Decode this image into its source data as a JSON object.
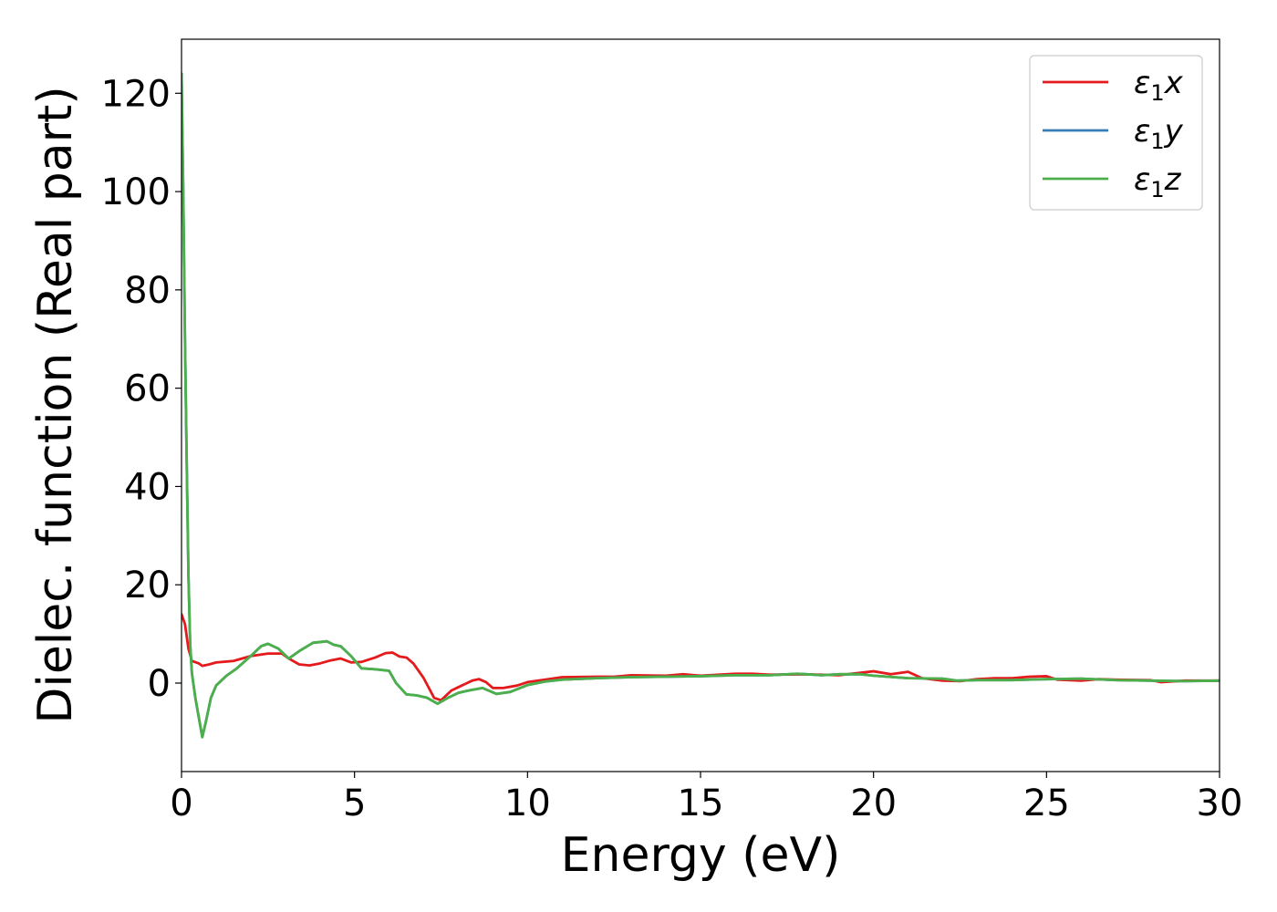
{
  "chart_data": {
    "type": "line",
    "title": "",
    "xlabel": "Energy (eV)",
    "ylabel": "Dielec. function (Real part)",
    "xlim": [
      0,
      30
    ],
    "ylim": [
      -18,
      131
    ],
    "xticks": [
      0,
      5,
      10,
      15,
      20,
      25,
      30
    ],
    "yticks": [
      0,
      20,
      40,
      60,
      80,
      100,
      120
    ],
    "grid": false,
    "legend_position": "top-right",
    "series": [
      {
        "name": "ε1x",
        "label_main": "ε",
        "label_sub": "1",
        "label_suffix": "x",
        "color": "#e41a1c",
        "points": [
          [
            0,
            14
          ],
          [
            0.1,
            12
          ],
          [
            0.2,
            7
          ],
          [
            0.3,
            4.5
          ],
          [
            0.5,
            4
          ],
          [
            0.6,
            3.5
          ],
          [
            0.8,
            3.8
          ],
          [
            1,
            4.2
          ],
          [
            1.5,
            4.5
          ],
          [
            2,
            5.5
          ],
          [
            2.5,
            6
          ],
          [
            2.9,
            6
          ],
          [
            3.1,
            5
          ],
          [
            3.4,
            3.8
          ],
          [
            3.7,
            3.6
          ],
          [
            4,
            4
          ],
          [
            4.3,
            4.6
          ],
          [
            4.6,
            5
          ],
          [
            4.9,
            4.2
          ],
          [
            5.2,
            4.3
          ],
          [
            5.6,
            5.2
          ],
          [
            5.9,
            6.1
          ],
          [
            6.1,
            6.2
          ],
          [
            6.3,
            5.4
          ],
          [
            6.5,
            5.2
          ],
          [
            6.7,
            4
          ],
          [
            7,
            1
          ],
          [
            7.3,
            -3
          ],
          [
            7.5,
            -3.5
          ],
          [
            7.8,
            -1.5
          ],
          [
            8.1,
            -0.5
          ],
          [
            8.4,
            0.5
          ],
          [
            8.6,
            0.8
          ],
          [
            8.8,
            0.2
          ],
          [
            9,
            -1
          ],
          [
            9.3,
            -1
          ],
          [
            9.7,
            -0.5
          ],
          [
            10,
            0.2
          ],
          [
            10.5,
            0.7
          ],
          [
            11,
            1.2
          ],
          [
            12,
            1.3
          ],
          [
            12.5,
            1.3
          ],
          [
            13,
            1.6
          ],
          [
            14,
            1.5
          ],
          [
            14.5,
            1.8
          ],
          [
            15,
            1.5
          ],
          [
            16,
            1.9
          ],
          [
            16.5,
            1.9
          ],
          [
            17,
            1.7
          ],
          [
            18,
            1.8
          ],
          [
            19,
            1.6
          ],
          [
            20,
            2.4
          ],
          [
            20.5,
            1.8
          ],
          [
            21,
            2.3
          ],
          [
            21.4,
            1
          ],
          [
            22,
            0.5
          ],
          [
            22.5,
            0.4
          ],
          [
            23,
            0.8
          ],
          [
            23.5,
            1
          ],
          [
            24,
            1
          ],
          [
            24.5,
            1.3
          ],
          [
            25,
            1.4
          ],
          [
            25.3,
            0.7
          ],
          [
            26,
            0.5
          ],
          [
            26.5,
            0.8
          ],
          [
            27,
            0.7
          ],
          [
            28,
            0.6
          ],
          [
            28.3,
            0.2
          ],
          [
            29,
            0.5
          ],
          [
            30,
            0.5
          ]
        ]
      },
      {
        "name": "ε1y",
        "label_main": "ε",
        "label_sub": "1",
        "label_suffix": "y",
        "color": "#377eb8",
        "points": [
          [
            0,
            124
          ],
          [
            0.05,
            100
          ],
          [
            0.1,
            70
          ],
          [
            0.15,
            45
          ],
          [
            0.2,
            22
          ],
          [
            0.25,
            8
          ],
          [
            0.3,
            2
          ],
          [
            0.4,
            -3
          ],
          [
            0.5,
            -7
          ],
          [
            0.6,
            -11
          ],
          [
            0.7,
            -8
          ],
          [
            0.85,
            -3
          ],
          [
            1,
            -0.5
          ],
          [
            1.3,
            1.5
          ],
          [
            1.6,
            3
          ],
          [
            2,
            5.5
          ],
          [
            2.3,
            7.5
          ],
          [
            2.5,
            8
          ],
          [
            2.8,
            7
          ],
          [
            3.1,
            5
          ],
          [
            3.4,
            6.5
          ],
          [
            3.8,
            8.2
          ],
          [
            4.2,
            8.5
          ],
          [
            4.4,
            7.8
          ],
          [
            4.6,
            7.5
          ],
          [
            4.9,
            5.5
          ],
          [
            5.2,
            3
          ],
          [
            5.6,
            2.8
          ],
          [
            6,
            2.5
          ],
          [
            6.2,
            0
          ],
          [
            6.5,
            -2.3
          ],
          [
            6.8,
            -2.5
          ],
          [
            7.1,
            -3
          ],
          [
            7.4,
            -4.2
          ],
          [
            7.7,
            -3
          ],
          [
            8,
            -2
          ],
          [
            8.3,
            -1.5
          ],
          [
            8.7,
            -1
          ],
          [
            9.1,
            -2.2
          ],
          [
            9.5,
            -1.8
          ],
          [
            10,
            -0.4
          ],
          [
            10.5,
            0.3
          ],
          [
            11,
            0.7
          ],
          [
            12,
            1
          ],
          [
            13,
            1.2
          ],
          [
            14,
            1.3
          ],
          [
            15,
            1.4
          ],
          [
            16,
            1.6
          ],
          [
            17,
            1.6
          ],
          [
            17.8,
            1.9
          ],
          [
            18.5,
            1.6
          ],
          [
            19,
            1.8
          ],
          [
            19.6,
            1.8
          ],
          [
            20,
            1.5
          ],
          [
            21,
            1
          ],
          [
            22,
            0.9
          ],
          [
            22.4,
            0.5
          ],
          [
            23,
            0.6
          ],
          [
            24,
            0.6
          ],
          [
            25,
            0.8
          ],
          [
            26,
            0.9
          ],
          [
            27,
            0.6
          ],
          [
            28,
            0.5
          ],
          [
            29,
            0.4
          ],
          [
            30,
            0.5
          ]
        ]
      },
      {
        "name": "ε1z",
        "label_main": "ε",
        "label_sub": "1",
        "label_suffix": "z",
        "color": "#4daf4a",
        "points": [
          [
            0,
            124
          ],
          [
            0.05,
            100
          ],
          [
            0.1,
            70
          ],
          [
            0.15,
            45
          ],
          [
            0.2,
            22
          ],
          [
            0.25,
            8
          ],
          [
            0.3,
            2
          ],
          [
            0.4,
            -3
          ],
          [
            0.5,
            -7
          ],
          [
            0.6,
            -11
          ],
          [
            0.7,
            -8
          ],
          [
            0.85,
            -3
          ],
          [
            1,
            -0.5
          ],
          [
            1.3,
            1.5
          ],
          [
            1.6,
            3
          ],
          [
            2,
            5.5
          ],
          [
            2.3,
            7.5
          ],
          [
            2.5,
            8
          ],
          [
            2.8,
            7
          ],
          [
            3.1,
            5
          ],
          [
            3.4,
            6.5
          ],
          [
            3.8,
            8.2
          ],
          [
            4.2,
            8.5
          ],
          [
            4.4,
            7.8
          ],
          [
            4.6,
            7.5
          ],
          [
            4.9,
            5.5
          ],
          [
            5.2,
            3
          ],
          [
            5.6,
            2.8
          ],
          [
            6,
            2.5
          ],
          [
            6.2,
            0
          ],
          [
            6.5,
            -2.3
          ],
          [
            6.8,
            -2.5
          ],
          [
            7.1,
            -3
          ],
          [
            7.4,
            -4.2
          ],
          [
            7.7,
            -3
          ],
          [
            8,
            -2
          ],
          [
            8.3,
            -1.5
          ],
          [
            8.7,
            -1
          ],
          [
            9.1,
            -2.2
          ],
          [
            9.5,
            -1.8
          ],
          [
            10,
            -0.4
          ],
          [
            10.5,
            0.3
          ],
          [
            11,
            0.7
          ],
          [
            12,
            1
          ],
          [
            13,
            1.2
          ],
          [
            14,
            1.3
          ],
          [
            15,
            1.4
          ],
          [
            16,
            1.6
          ],
          [
            17,
            1.6
          ],
          [
            17.8,
            1.9
          ],
          [
            18.5,
            1.6
          ],
          [
            19,
            1.8
          ],
          [
            19.6,
            1.8
          ],
          [
            20,
            1.5
          ],
          [
            21,
            1
          ],
          [
            22,
            0.9
          ],
          [
            22.4,
            0.5
          ],
          [
            23,
            0.6
          ],
          [
            24,
            0.6
          ],
          [
            25,
            0.8
          ],
          [
            26,
            0.9
          ],
          [
            27,
            0.6
          ],
          [
            28,
            0.5
          ],
          [
            29,
            0.4
          ],
          [
            30,
            0.5
          ]
        ]
      }
    ]
  }
}
